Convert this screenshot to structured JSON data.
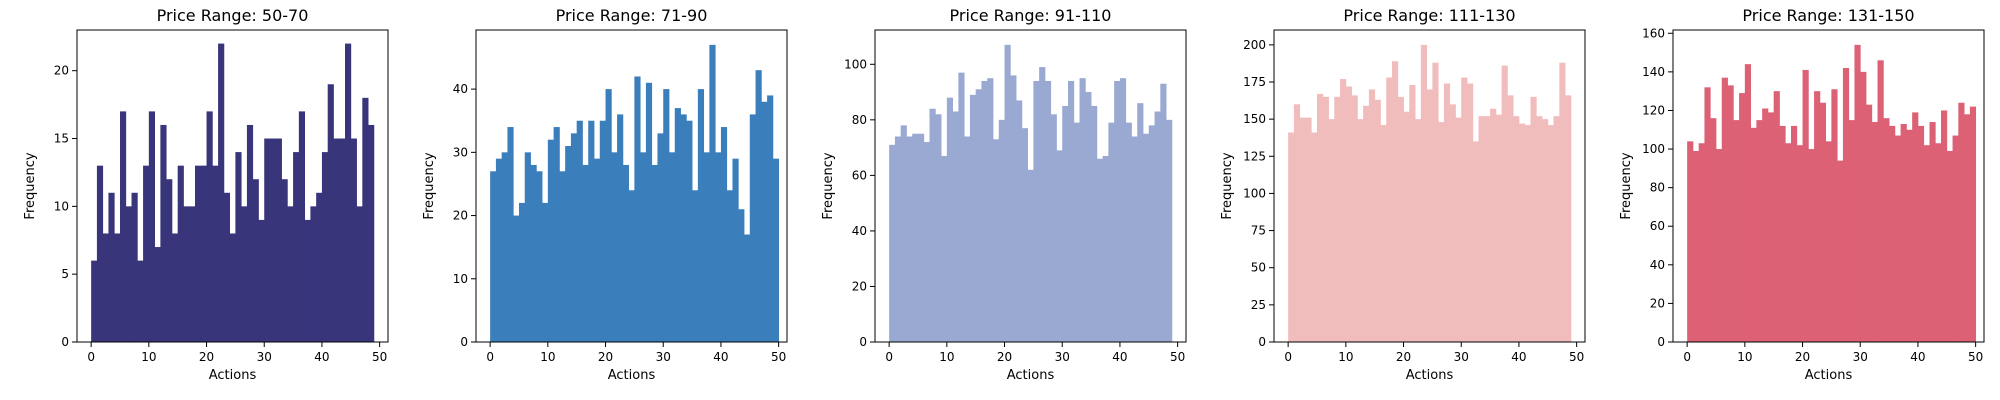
{
  "chart_data": [
    {
      "type": "bar",
      "title": "Price Range: 50-70",
      "xlabel": "Actions",
      "ylabel": "Frequency",
      "color": "#38357b",
      "xlim": [
        -2.45,
        51.45
      ],
      "ylim": [
        0,
        23
      ],
      "xticks": [
        0,
        10,
        20,
        30,
        40,
        50
      ],
      "yticks": [
        0,
        5,
        10,
        15,
        20
      ],
      "values": [
        6,
        13,
        8,
        11,
        8,
        17,
        10,
        11,
        6,
        13,
        17,
        7,
        16,
        12,
        8,
        13,
        10,
        10,
        13,
        13,
        17,
        13,
        22,
        11,
        8,
        14,
        10,
        16,
        12,
        9,
        15,
        15,
        15,
        12,
        10,
        14,
        17,
        9,
        10,
        11,
        14,
        19,
        15,
        15,
        22,
        15,
        10,
        18,
        16
      ]
    },
    {
      "type": "bar",
      "title": "Price Range: 71-90",
      "xlabel": "Actions",
      "ylabel": "Frequency",
      "color": "#3a7ebb",
      "xlim": [
        -2.45,
        51.45
      ],
      "ylim": [
        0,
        49.35
      ],
      "xticks": [
        0,
        10,
        20,
        30,
        40,
        50
      ],
      "yticks": [
        0,
        10,
        20,
        30,
        40
      ],
      "values": [
        27,
        29,
        30,
        34,
        20,
        22,
        30,
        28,
        27,
        22,
        32,
        34,
        27,
        31,
        33,
        35,
        28,
        35,
        29,
        35,
        40,
        30,
        36,
        28,
        24,
        42,
        30,
        41,
        28,
        33,
        40,
        30,
        37,
        36,
        35,
        24,
        40,
        30,
        47,
        30,
        34,
        24,
        29,
        21,
        17,
        36,
        43,
        38,
        39,
        29
      ]
    },
    {
      "type": "bar",
      "title": "Price Range: 91-110",
      "xlabel": "Actions",
      "ylabel": "Frequency",
      "color": "#99a9d1",
      "xlim": [
        -2.45,
        51.45
      ],
      "ylim": [
        0,
        112.35
      ],
      "xticks": [
        0,
        10,
        20,
        30,
        40,
        50
      ],
      "yticks": [
        0,
        20,
        40,
        60,
        80,
        100
      ],
      "values": [
        71,
        74,
        78,
        74,
        75,
        75,
        72,
        84,
        82,
        67,
        88,
        83,
        97,
        74,
        89,
        91,
        94,
        95,
        73,
        80,
        107,
        96,
        87,
        77,
        62,
        94,
        99,
        94,
        82,
        69,
        85,
        94,
        79,
        95,
        90,
        85,
        66,
        67,
        79,
        94,
        95,
        79,
        74,
        86,
        75,
        78,
        83,
        93,
        80
      ]
    },
    {
      "type": "bar",
      "title": "Price Range: 111-130",
      "xlabel": "Actions",
      "ylabel": "Frequency",
      "color": "#f1bcbc",
      "xlim": [
        -2.45,
        51.45
      ],
      "ylim": [
        0,
        210
      ],
      "xticks": [
        0,
        10,
        20,
        30,
        40,
        50
      ],
      "yticks": [
        0,
        25,
        50,
        75,
        100,
        125,
        150,
        175,
        200
      ],
      "values": [
        141,
        160,
        151,
        151,
        141,
        167,
        165,
        150,
        165,
        177,
        172,
        166,
        150,
        159,
        170,
        163,
        146,
        178,
        189,
        165,
        155,
        173,
        150,
        200,
        170,
        188,
        148,
        174,
        160,
        151,
        178,
        174,
        135,
        152,
        152,
        157,
        153,
        186,
        166,
        152,
        147,
        146,
        165,
        152,
        150,
        146,
        152,
        188,
        166
      ]
    },
    {
      "type": "bar",
      "title": "Price Range: 131-150",
      "xlabel": "Actions",
      "ylabel": "Frequency",
      "color": "#dd6174",
      "xlim": [
        -2.45,
        51.45
      ],
      "ylim": [
        0,
        161.7
      ],
      "xticks": [
        0,
        10,
        20,
        30,
        40,
        50
      ],
      "yticks": [
        0,
        20,
        40,
        60,
        80,
        100,
        120,
        140,
        160
      ],
      "values": [
        104,
        99,
        103,
        132,
        116,
        100,
        137,
        133,
        115,
        129,
        144,
        111,
        115,
        121,
        119,
        130,
        112,
        103,
        112,
        102,
        141,
        100,
        130,
        124,
        104,
        131,
        94,
        142,
        115,
        154,
        140,
        123,
        114,
        146,
        116,
        112,
        107,
        113,
        110,
        119,
        112,
        102,
        114,
        103,
        120,
        99,
        107,
        124,
        118,
        122
      ]
    }
  ]
}
